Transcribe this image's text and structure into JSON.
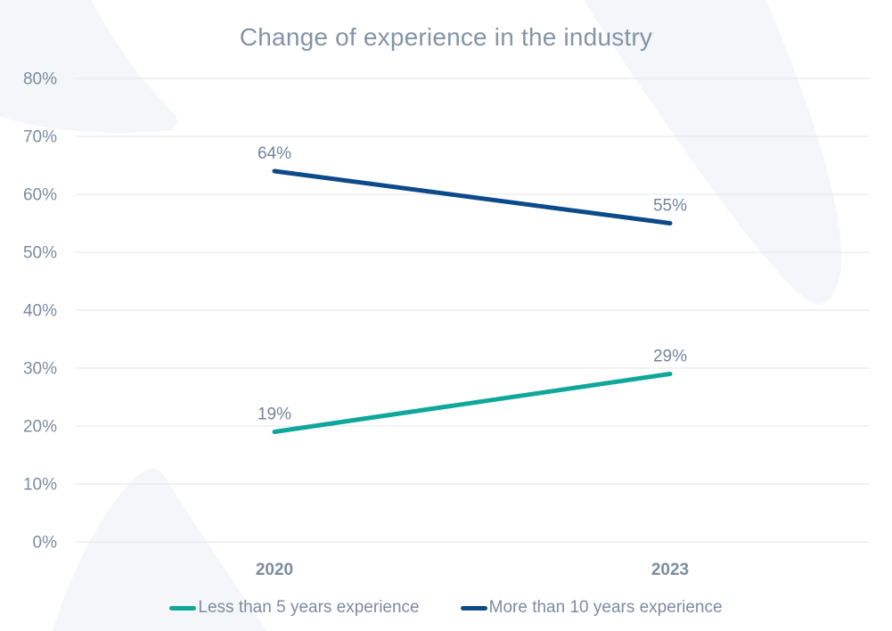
{
  "chart_data": {
    "type": "line",
    "title": "Change of experience in the industry",
    "categories": [
      "2020",
      "2023"
    ],
    "series": [
      {
        "name": "Less than 5 years experience",
        "color": "#10A79B",
        "values": [
          19,
          29
        ],
        "point_labels": [
          "19%",
          "29%"
        ]
      },
      {
        "name": "More than 10 years experience",
        "color": "#0D4A8B",
        "values": [
          64,
          55
        ],
        "point_labels": [
          "64%",
          "55%"
        ]
      }
    ],
    "ylim": [
      0,
      80
    ],
    "ytick_step": 10,
    "yticks": [
      "0%",
      "10%",
      "20%",
      "30%",
      "40%",
      "50%",
      "60%",
      "70%",
      "80%"
    ],
    "grid": true,
    "legend_position": "bottom"
  },
  "colors": {
    "teal_series": "#10A79B",
    "navy_series": "#0D4A8B",
    "title_text": "#8494A6",
    "axis_text": "#7C8CA0",
    "data_label_text": "#74859B",
    "gridline": "#E3E6E8",
    "background": "#FFFFFF",
    "decorative_shape": "#F4F6F9"
  }
}
